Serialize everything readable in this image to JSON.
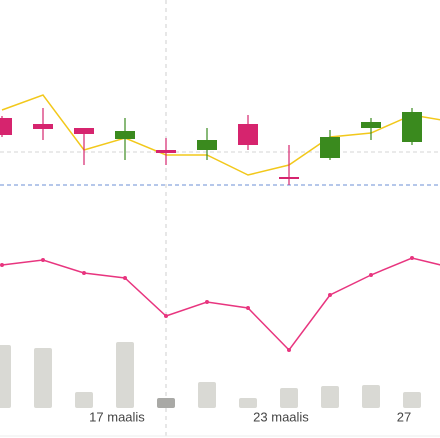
{
  "chart_data": {
    "type": "candlestick",
    "categories": [
      null,
      null,
      null,
      "17 maalis",
      null,
      null,
      null,
      "23 maalis",
      null,
      null,
      "27",
      null
    ],
    "open": [
      82,
      76,
      72,
      61,
      50,
      50,
      76,
      23,
      42,
      72,
      58,
      null
    ],
    "high": [
      84,
      92,
      72,
      82,
      62,
      72,
      85,
      55,
      70,
      82,
      92,
      null
    ],
    "low": [
      63,
      60,
      35,
      40,
      35,
      40,
      50,
      15,
      40,
      60,
      55,
      null
    ],
    "close": [
      65,
      71,
      66,
      69,
      47,
      60,
      55,
      21,
      63,
      78,
      88,
      null
    ],
    "up_color": "#3a8a1e",
    "down_color": "#d6246e",
    "ylim": [
      0,
      110
    ],
    "series": [
      {
        "color": "#f2c81b",
        "panel": "price",
        "values": [
          90,
          105,
          50,
          62,
          45,
          45,
          25,
          35,
          63,
          67,
          85,
          78
        ]
      },
      {
        "color": "#e8357f",
        "panel": "indicator",
        "markers": true,
        "values": [
          95,
          100,
          87,
          82,
          44,
          58,
          52,
          10,
          65,
          85,
          102,
          92
        ]
      }
    ],
    "indicator_lim": [
      0,
      120
    ],
    "reference_lines": [
      {
        "value": 15,
        "color": "#6b8fd6"
      },
      {
        "value": 48,
        "color": "#d4d4d4"
      }
    ],
    "volume": [
      63,
      60,
      16,
      66,
      10,
      26,
      10,
      20,
      22,
      23,
      16,
      null
    ],
    "volume_lim": [
      0,
      80
    ],
    "volume_color": "#d9d9d4",
    "volume_highlight_color": "#a9a9a6",
    "crosshair_index": 4
  }
}
